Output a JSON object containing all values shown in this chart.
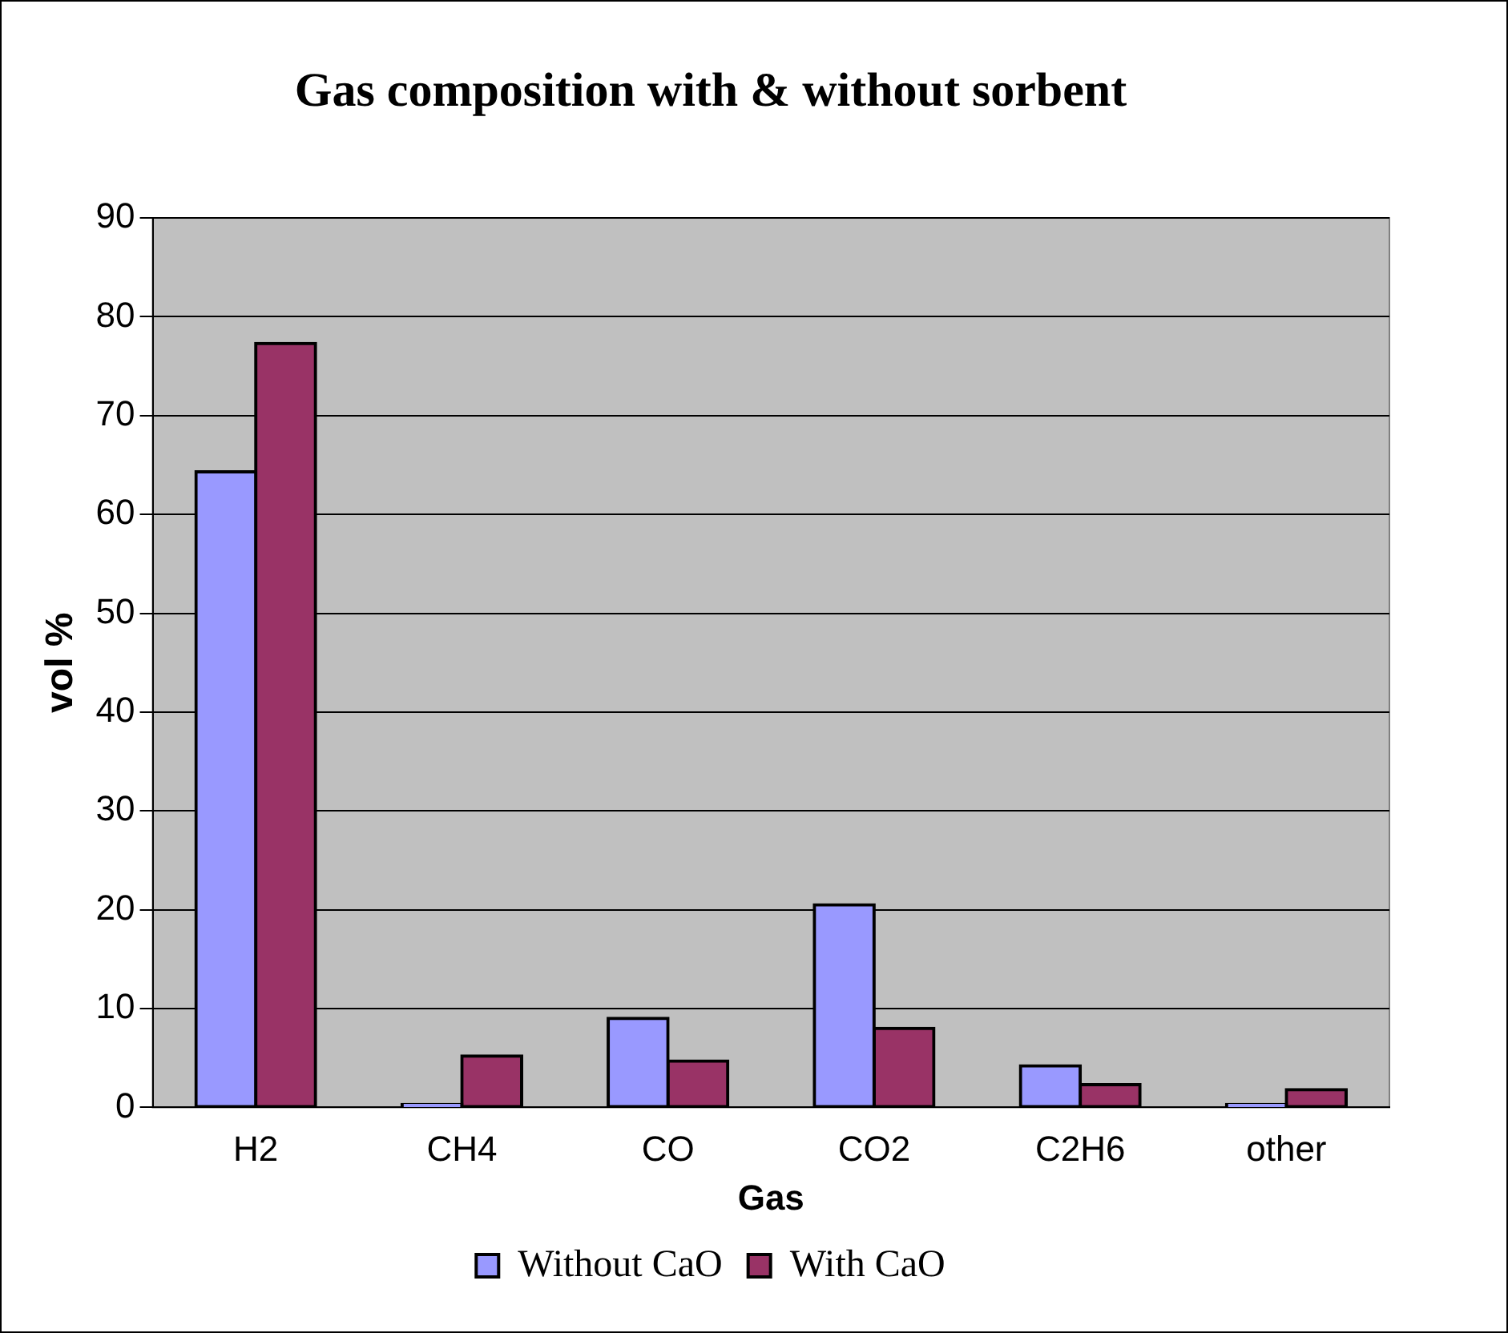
{
  "chart_data": {
    "type": "bar",
    "title": "Gas composition with & without sorbent",
    "xlabel": "Gas",
    "ylabel": "vol %",
    "categories": [
      "H2",
      "CH4",
      "CO",
      "CO2",
      "C2H6",
      "other"
    ],
    "series": [
      {
        "name": "Without CaO",
        "color": "#9999ff",
        "values": [
          64.3,
          0.3,
          9.0,
          20.5,
          4.2,
          0.3
        ]
      },
      {
        "name": "With CaO",
        "color": "#993366",
        "values": [
          77.3,
          5.2,
          4.7,
          8.0,
          2.3,
          1.8
        ]
      }
    ],
    "ylim": [
      0,
      90
    ],
    "yticks": [
      0,
      10,
      20,
      30,
      40,
      50,
      60,
      70,
      80,
      90
    ],
    "grid": "y",
    "legend": "bottom"
  }
}
